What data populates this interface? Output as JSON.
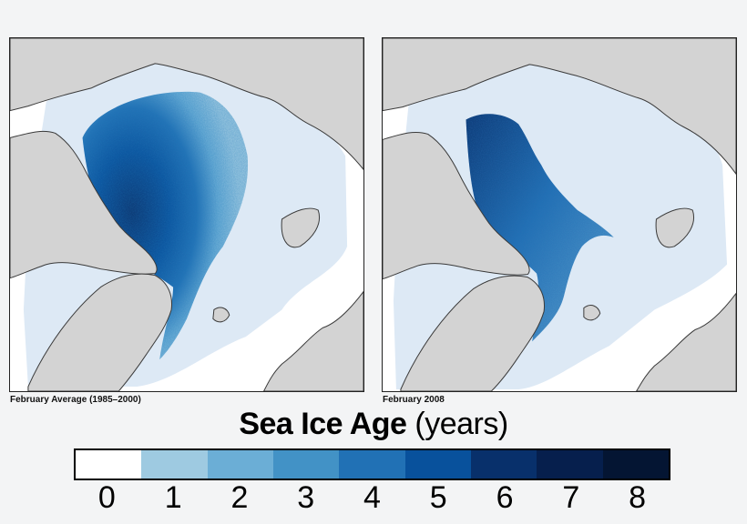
{
  "title": {
    "main": "Sea Ice Age",
    "unit": "(years)"
  },
  "maps": [
    {
      "caption": "February Average (1985–2000)"
    },
    {
      "caption": "February 2008"
    }
  ],
  "legend": {
    "labels": [
      "0",
      "1",
      "2",
      "3",
      "4",
      "5",
      "6",
      "7",
      "8"
    ],
    "colors": [
      "#ffffff",
      "#9ecae1",
      "#6baed6",
      "#4292c6",
      "#2171b5",
      "#08519c",
      "#08306b",
      "#061f4d",
      "#041533"
    ]
  },
  "colors": {
    "land": "#d3d3d3",
    "land_outline": "#3a3a3a",
    "first_year_ice": "#dde9f5",
    "open_water": "#ffffff"
  }
}
